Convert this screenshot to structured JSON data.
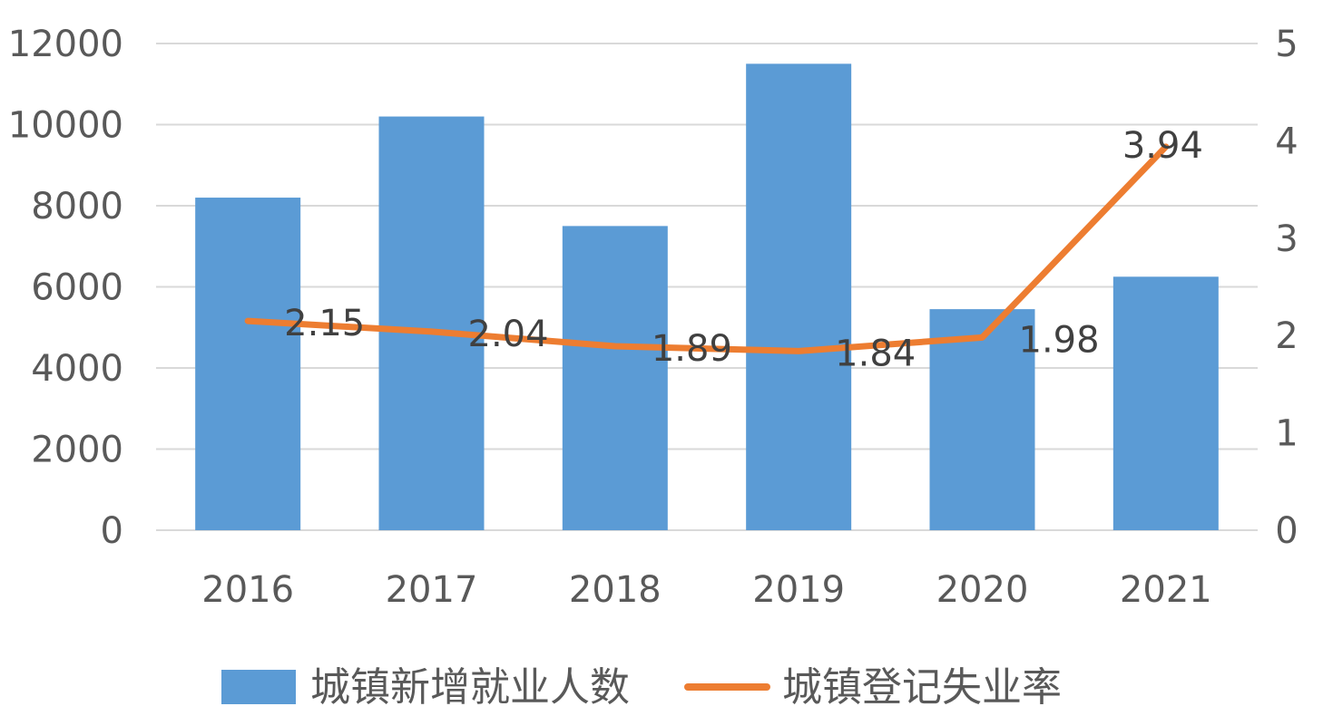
{
  "chart_data": {
    "type": "bar",
    "categories": [
      "2016",
      "2017",
      "2018",
      "2019",
      "2020",
      "2021"
    ],
    "series": [
      {
        "name": "城镇新增就业人数",
        "type": "bar",
        "axis": "left",
        "color": "#5B9BD5",
        "values": [
          8200,
          10200,
          7500,
          11500,
          5450,
          6250
        ]
      },
      {
        "name": "城镇登记失业率",
        "type": "line",
        "axis": "right",
        "color": "#ED7D31",
        "values": [
          2.15,
          2.04,
          1.89,
          1.84,
          1.98,
          3.94
        ],
        "data_labels": [
          "2.15",
          "2.04",
          "1.89",
          "1.84",
          "1.98",
          "3.94"
        ]
      }
    ],
    "y_left": {
      "range": [
        0,
        12000
      ],
      "ticks": [
        "0",
        "2000",
        "4000",
        "6000",
        "8000",
        "10000",
        "12000"
      ]
    },
    "y_right": {
      "range": [
        0,
        5
      ],
      "ticks": [
        "0",
        "1",
        "2",
        "3",
        "4",
        "5"
      ]
    },
    "grid": true,
    "legend": "bottom",
    "title": "",
    "xlabel": "",
    "ylabel": ""
  }
}
